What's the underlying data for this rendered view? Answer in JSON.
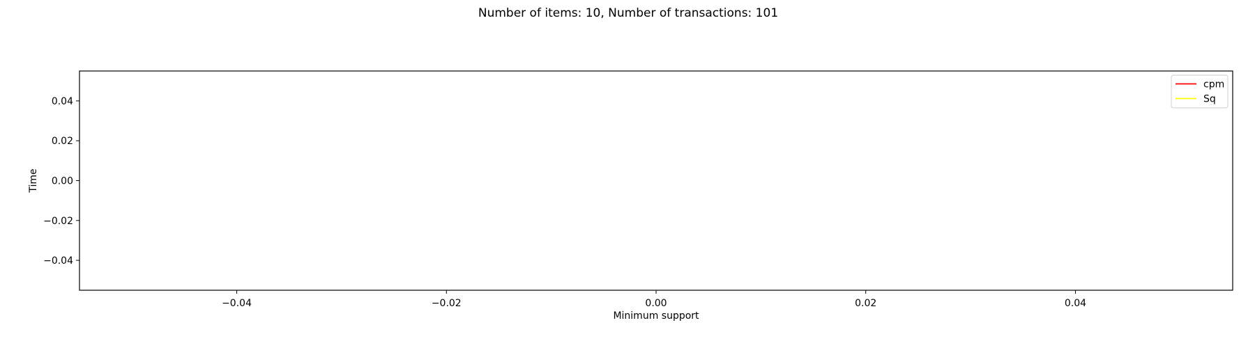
{
  "chart_data": {
    "type": "line",
    "title": "Number of items: 10, Number of transactions: 101",
    "xlabel": "Minimum support",
    "ylabel": "Time",
    "xlim": [
      -0.055,
      0.055
    ],
    "ylim": [
      -0.055,
      0.055
    ],
    "x_ticks": [
      -0.04,
      -0.02,
      0.0,
      0.02,
      0.04
    ],
    "x_tick_labels": [
      "−0.04",
      "−0.02",
      "0.00",
      "0.02",
      "0.04"
    ],
    "y_ticks": [
      -0.04,
      -0.02,
      0.0,
      0.02,
      0.04
    ],
    "y_tick_labels": [
      "−0.04",
      "−0.02",
      "0.00",
      "0.02",
      "0.04"
    ],
    "grid": false,
    "legend_position": "top-right",
    "series": [
      {
        "name": "cpm",
        "color": "#ff0000",
        "x": [],
        "y": []
      },
      {
        "name": "Sq",
        "color": "#ffff00",
        "x": [],
        "y": []
      }
    ]
  }
}
